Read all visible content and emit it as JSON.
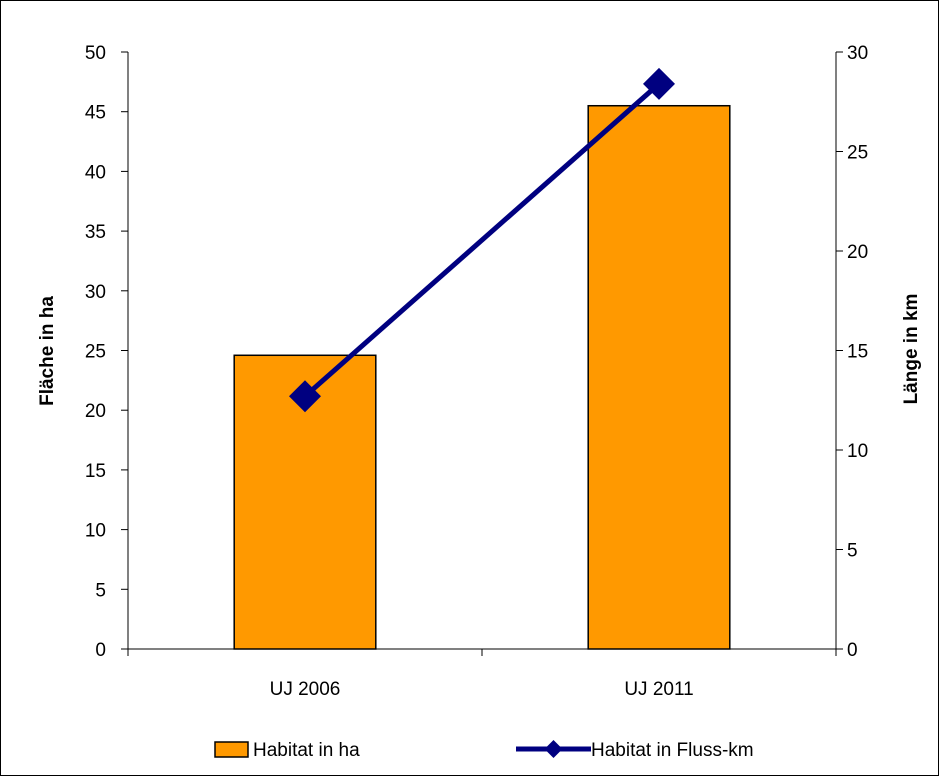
{
  "chart_data": {
    "type": "bar",
    "categories": [
      "UJ 2006",
      "UJ 2011"
    ],
    "series": [
      {
        "name": "Habitat in ha",
        "chart_type": "bar",
        "axis": "left",
        "values": [
          24.6,
          45.5
        ],
        "color": "#FF9900"
      },
      {
        "name": "Habitat in Fluss-km",
        "chart_type": "line",
        "axis": "right",
        "marker": "diamond",
        "values": [
          12.7,
          28.4
        ],
        "color": "#000080"
      }
    ],
    "ylabel": "Fläche in ha",
    "ylim": [
      0,
      50
    ],
    "yticks": [
      "0",
      "5",
      "10",
      "15",
      "20",
      "25",
      "30",
      "35",
      "40",
      "45",
      "50"
    ],
    "y2label": "Länge in km",
    "y2lim": [
      0,
      30
    ],
    "y2ticks": [
      "0",
      "5",
      "10",
      "15",
      "20",
      "25",
      "30"
    ],
    "grid": false,
    "legend_position": "bottom"
  }
}
